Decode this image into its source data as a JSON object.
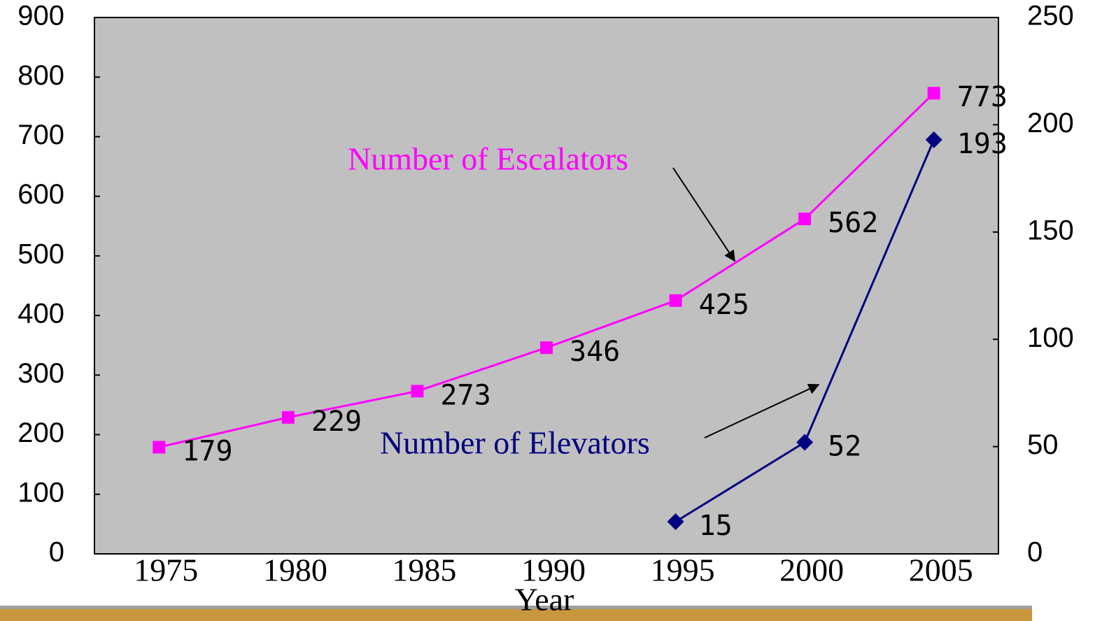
{
  "chart_data": {
    "type": "line",
    "xlabel": "Year",
    "categories": [
      "1975",
      "1980",
      "1985",
      "1990",
      "1995",
      "2000",
      "2005"
    ],
    "series": [
      {
        "name": "Number of Escalators",
        "color": "#ff00ff",
        "marker": "square",
        "values": [
          179,
          229,
          273,
          346,
          425,
          562,
          773
        ]
      },
      {
        "name": "Number of Elevators",
        "color": "#000080",
        "marker": "diamond",
        "axis": "y2",
        "values": [
          null,
          null,
          null,
          null,
          15,
          52,
          193
        ]
      }
    ],
    "ylim": [
      0,
      900
    ],
    "yticks": [
      0,
      100,
      200,
      300,
      400,
      500,
      600,
      700,
      800,
      900
    ],
    "y2lim": [
      0,
      250
    ],
    "y2ticks": [
      0,
      50,
      100,
      150,
      200,
      250
    ],
    "plot_background": "#c0c0c0"
  }
}
